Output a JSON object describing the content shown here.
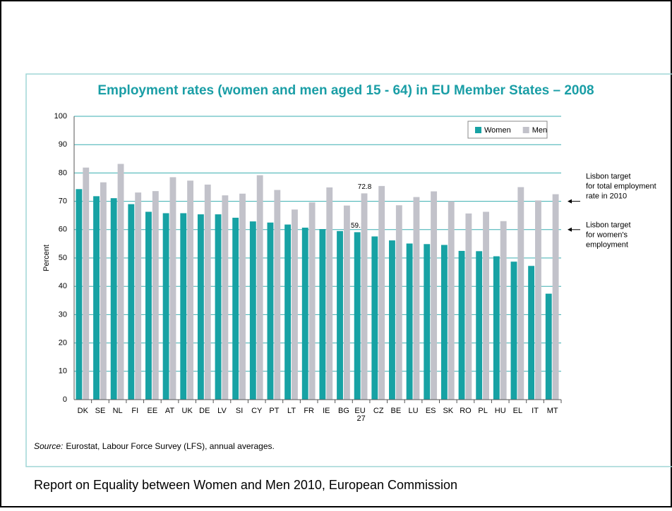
{
  "chart_data": {
    "type": "bar",
    "title": "Employment rates (women and men aged 15 - 64) in EU Member States – 2008",
    "y_label": "Percent",
    "categories": [
      "DK",
      "SE",
      "NL",
      "FI",
      "EE",
      "AT",
      "UK",
      "DE",
      "LV",
      "SI",
      "CY",
      "PT",
      "LT",
      "FR",
      "IE",
      "BG",
      "EU 27",
      "CZ",
      "BE",
      "LU",
      "ES",
      "SK",
      "RO",
      "PL",
      "HU",
      "EL",
      "IT",
      "MT"
    ],
    "series": [
      {
        "name": "Women",
        "color": "#17a2a4",
        "values": [
          74.3,
          71.8,
          71.1,
          69.0,
          66.3,
          65.8,
          65.8,
          65.4,
          65.4,
          64.2,
          62.9,
          62.5,
          61.8,
          60.7,
          60.2,
          59.5,
          59.1,
          57.6,
          56.2,
          55.1,
          54.9,
          54.6,
          52.5,
          52.4,
          50.6,
          48.7,
          47.2,
          37.4
        ],
        "value_labels": [
          null,
          null,
          null,
          null,
          null,
          null,
          null,
          null,
          null,
          null,
          null,
          null,
          null,
          null,
          null,
          null,
          "59.1",
          null,
          null,
          null,
          null,
          null,
          null,
          null,
          null,
          null,
          null,
          null
        ]
      },
      {
        "name": "Men",
        "color": "#c2c2ca",
        "values": [
          81.9,
          76.7,
          83.2,
          73.1,
          73.6,
          78.5,
          77.3,
          75.9,
          72.1,
          72.7,
          79.2,
          74.0,
          67.1,
          69.6,
          74.9,
          68.5,
          72.8,
          75.4,
          68.6,
          71.5,
          73.5,
          70.0,
          65.7,
          66.3,
          63.0,
          75.0,
          70.3,
          72.5
        ],
        "value_labels": [
          null,
          null,
          null,
          null,
          null,
          null,
          null,
          null,
          null,
          null,
          null,
          null,
          null,
          null,
          null,
          null,
          "72.8",
          null,
          null,
          null,
          null,
          null,
          null,
          null,
          null,
          null,
          null,
          null
        ]
      }
    ],
    "ylim": [
      0,
      100
    ],
    "yticks": [
      0,
      10,
      20,
      30,
      40,
      50,
      60,
      70,
      80,
      90,
      100
    ],
    "grid": true,
    "legend": "upper right",
    "annotations": [
      {
        "lines": [
          "Lisbon target",
          "for total employment",
          "rate in 2010"
        ],
        "y": 70
      },
      {
        "lines": [
          "Lisbon target",
          "for women's",
          "employment"
        ],
        "y": 60
      }
    ],
    "source_label": "Source:",
    "source": "Eurostat, Labour Force Survey (LFS), annual averages."
  },
  "caption": "Report on Equality between Women and Men 2010, European Commission"
}
